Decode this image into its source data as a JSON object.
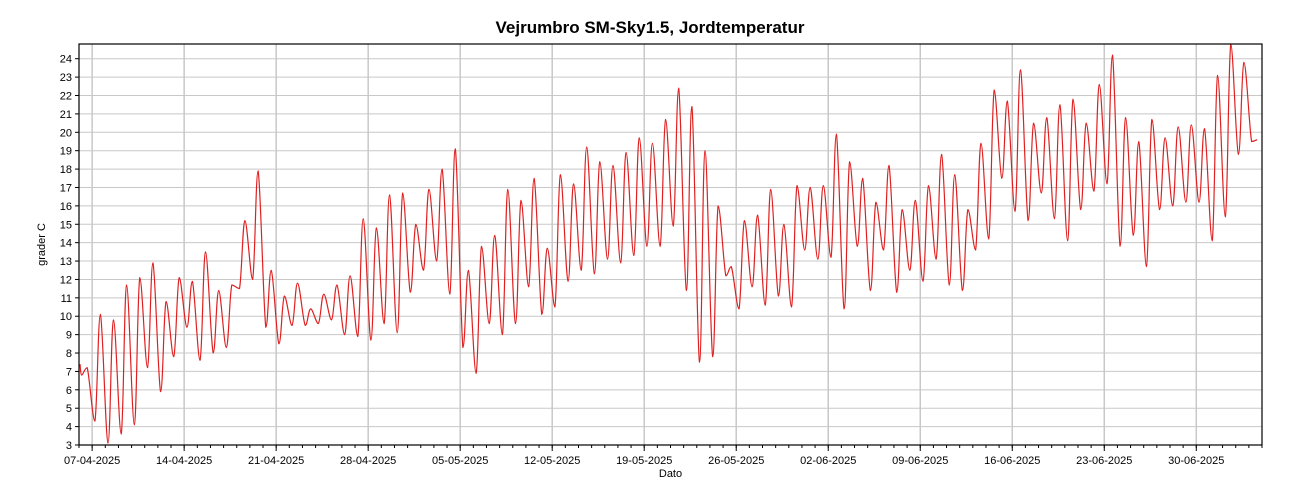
{
  "chart_data": {
    "type": "line",
    "title": "Vejrumbro SM-Sky1.5, Jordtemperatur",
    "xlabel": "Dato",
    "ylabel": "grader C",
    "ylim": [
      3,
      24.8
    ],
    "yticks": [
      3,
      4,
      5,
      6,
      7,
      8,
      9,
      10,
      11,
      12,
      13,
      14,
      15,
      16,
      17,
      18,
      19,
      20,
      21,
      22,
      23,
      24
    ],
    "xlim": [
      "2025-04-06",
      "2025-07-05"
    ],
    "xtick_labels": [
      "07-04-2025",
      "14-04-2025",
      "21-04-2025",
      "28-04-2025",
      "05-05-2025",
      "12-05-2025",
      "19-05-2025",
      "26-05-2025",
      "02-06-2025",
      "09-06-2025",
      "16-06-2025",
      "23-06-2025",
      "30-06-2025"
    ],
    "xtick_dates": [
      "2025-04-07",
      "2025-04-14",
      "2025-04-21",
      "2025-04-28",
      "2025-05-05",
      "2025-05-12",
      "2025-05-19",
      "2025-05-26",
      "2025-06-02",
      "2025-06-09",
      "2025-06-16",
      "2025-06-23",
      "2025-06-30"
    ],
    "grid": true,
    "line_color": "#e02020",
    "grid_color": "#c8c8c8",
    "series": [
      {
        "x": [
          "2025-04-06",
          "2025-04-07",
          "2025-04-08",
          "2025-04-09",
          "2025-04-10",
          "2025-04-11",
          "2025-04-12",
          "2025-04-13",
          "2025-04-14",
          "2025-04-15",
          "2025-04-16",
          "2025-04-17",
          "2025-04-18",
          "2025-04-19",
          "2025-04-20",
          "2025-04-21",
          "2025-04-22",
          "2025-04-23",
          "2025-04-24",
          "2025-04-25",
          "2025-04-26",
          "2025-04-27",
          "2025-04-28",
          "2025-04-29",
          "2025-04-30",
          "2025-05-01",
          "2025-05-02",
          "2025-05-03",
          "2025-05-04",
          "2025-05-05",
          "2025-05-06",
          "2025-05-07",
          "2025-05-08",
          "2025-05-09",
          "2025-05-10",
          "2025-05-11",
          "2025-05-12",
          "2025-05-13",
          "2025-05-14",
          "2025-05-15",
          "2025-05-16",
          "2025-05-17",
          "2025-05-18",
          "2025-05-19",
          "2025-05-20",
          "2025-05-21",
          "2025-05-22",
          "2025-05-23",
          "2025-05-24",
          "2025-05-25",
          "2025-05-26",
          "2025-05-27",
          "2025-05-28",
          "2025-05-29",
          "2025-05-30",
          "2025-05-31",
          "2025-06-01",
          "2025-06-02",
          "2025-06-03",
          "2025-06-04",
          "2025-06-05",
          "2025-06-06",
          "2025-06-07",
          "2025-06-08",
          "2025-06-09",
          "2025-06-10",
          "2025-06-11",
          "2025-06-12",
          "2025-06-13",
          "2025-06-14",
          "2025-06-15",
          "2025-06-16",
          "2025-06-17",
          "2025-06-18",
          "2025-06-19",
          "2025-06-20",
          "2025-06-21",
          "2025-06-22",
          "2025-06-23",
          "2025-06-24",
          "2025-06-25",
          "2025-06-26",
          "2025-06-27",
          "2025-06-28",
          "2025-06-29",
          "2025-06-30",
          "2025-07-01",
          "2025-07-02",
          "2025-07-03",
          "2025-07-04"
        ],
        "min": [
          6.8,
          4.3,
          3.1,
          3.6,
          4.1,
          7.2,
          5.9,
          7.8,
          9.4,
          7.6,
          8.0,
          8.3,
          11.5,
          12.0,
          9.4,
          8.5,
          9.5,
          9.5,
          9.6,
          9.8,
          9.0,
          8.9,
          8.7,
          9.6,
          9.1,
          11.3,
          12.5,
          13.0,
          11.2,
          8.3,
          6.9,
          9.6,
          9.0,
          9.6,
          11.6,
          10.1,
          10.5,
          11.9,
          12.5,
          12.3,
          13.1,
          12.9,
          13.3,
          13.8,
          13.8,
          14.9,
          11.4,
          7.5,
          7.8,
          12.2,
          10.4,
          11.6,
          10.6,
          11.1,
          10.5,
          13.6,
          13.1,
          13.2,
          10.4,
          13.8,
          11.4,
          13.6,
          11.3,
          12.5,
          11.9,
          13.1,
          11.7,
          11.4,
          13.6,
          14.2,
          17.5,
          15.7,
          15.2,
          16.7,
          15.3,
          14.1,
          15.8,
          16.8,
          17.2,
          13.8,
          14.4,
          12.7,
          15.8,
          16.0,
          16.2,
          16.2,
          14.1,
          15.4,
          18.8,
          19.5
        ],
        "max": [
          7.2,
          10.1,
          9.8,
          11.7,
          12.1,
          12.9,
          10.8,
          12.1,
          11.9,
          13.5,
          11.4,
          11.7,
          15.2,
          17.9,
          12.5,
          11.1,
          11.8,
          10.4,
          11.2,
          11.7,
          12.2,
          15.3,
          14.8,
          16.6,
          16.7,
          15.0,
          16.9,
          18.0,
          19.1,
          12.5,
          13.8,
          14.4,
          16.9,
          16.3,
          17.5,
          13.7,
          17.7,
          17.2,
          19.2,
          18.4,
          18.2,
          18.9,
          19.7,
          19.4,
          20.7,
          22.4,
          21.4,
          19.0,
          16.0,
          12.7,
          15.2,
          15.5,
          16.9,
          15.0,
          17.1,
          17.0,
          17.1,
          19.9,
          18.4,
          17.5,
          16.2,
          18.2,
          15.8,
          16.3,
          17.1,
          18.8,
          17.7,
          15.8,
          19.4,
          22.3,
          21.7,
          23.4,
          20.5,
          20.8,
          21.5,
          21.8,
          20.5,
          22.6,
          24.2,
          20.8,
          19.5,
          20.7,
          19.7,
          20.3,
          20.4,
          20.2,
          23.1,
          24.8,
          23.8,
          19.6
        ]
      }
    ]
  }
}
